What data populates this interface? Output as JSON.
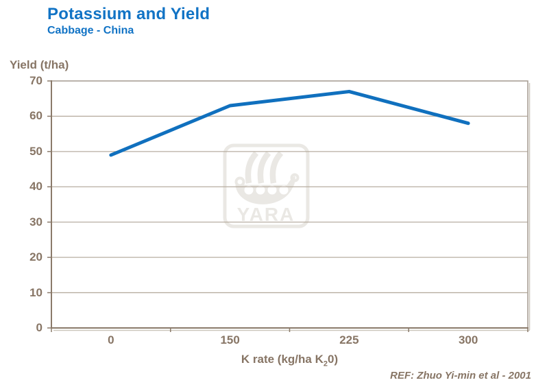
{
  "header": {
    "title": "Potassium and Yield",
    "subtitle": "Cabbage - China"
  },
  "chart_data": {
    "type": "line",
    "title": "Potassium and Yield",
    "subtitle": "Cabbage - China",
    "categories": [
      "0",
      "150",
      "225",
      "300"
    ],
    "series": [
      {
        "name": "Yield",
        "values": [
          49,
          63,
          67,
          58
        ]
      }
    ],
    "xlabel": "K rate (kg/ha K20)",
    "xlabel_parts": {
      "pre": "K rate (kg/ha K",
      "sub": "2",
      "post": "0)"
    },
    "ylabel": "Yield (t/ha)",
    "ylim": [
      0,
      70
    ],
    "yticks": [
      0,
      10,
      20,
      30,
      40,
      50,
      60,
      70
    ],
    "grid": true,
    "legend": "none"
  },
  "watermark": {
    "label": "YARA"
  },
  "footer": {
    "reference": "REF: Zhuo Yi-min et al - 2001"
  },
  "colors": {
    "accent_blue": "#1173C5",
    "line_blue": "#1070BE",
    "text_taupe": "#877565",
    "axis_taupe": "#8A7A6A",
    "gridline": "#B7ADA0",
    "plot_border": "#A9A096",
    "axis_shadow": "#CCC6BC",
    "watermark_gray": "#EAE8E4",
    "background": "#FFFFFF"
  }
}
